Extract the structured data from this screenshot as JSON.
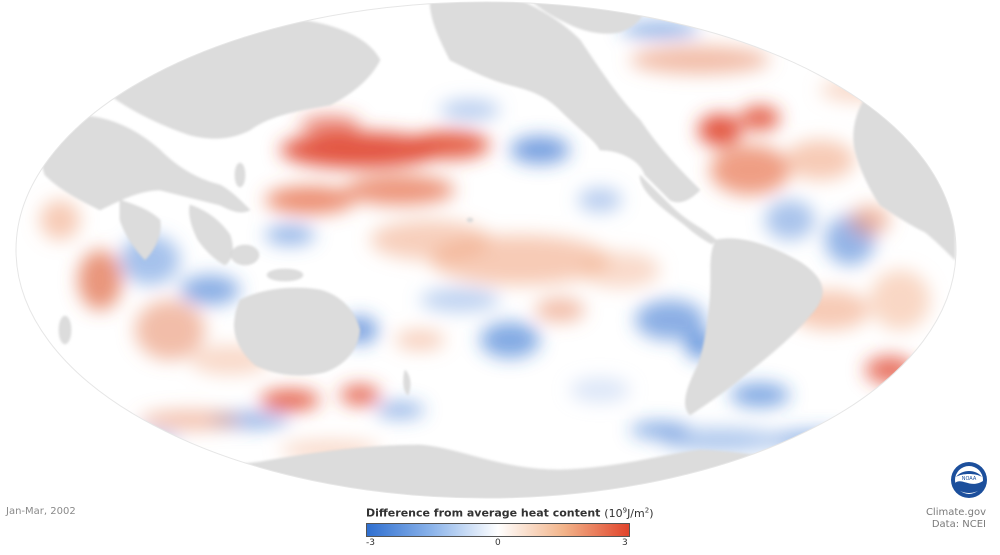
{
  "map": {
    "date_label": "Jan-Mar, 2002",
    "legend": {
      "title": "Difference from average heat content",
      "unit_base": "(10",
      "unit_exp": "9",
      "unit_mid": "J/m",
      "unit_exp2": "2",
      "unit_end": ")",
      "min_label": "-3",
      "mid_label": "0",
      "max_label": "3",
      "color_low": "#2f6fd0",
      "color_mid": "#ffffff",
      "color_high": "#e0442c"
    },
    "credit": {
      "line1": "Climate.gov",
      "line2": "Data: NCEI"
    },
    "logo": {
      "text": "NOAA",
      "icon": "noaa-logo-icon"
    },
    "colors": {
      "land": "#dcdcdc",
      "warm": "#e0442c",
      "cool": "#2f6fd0"
    }
  }
}
